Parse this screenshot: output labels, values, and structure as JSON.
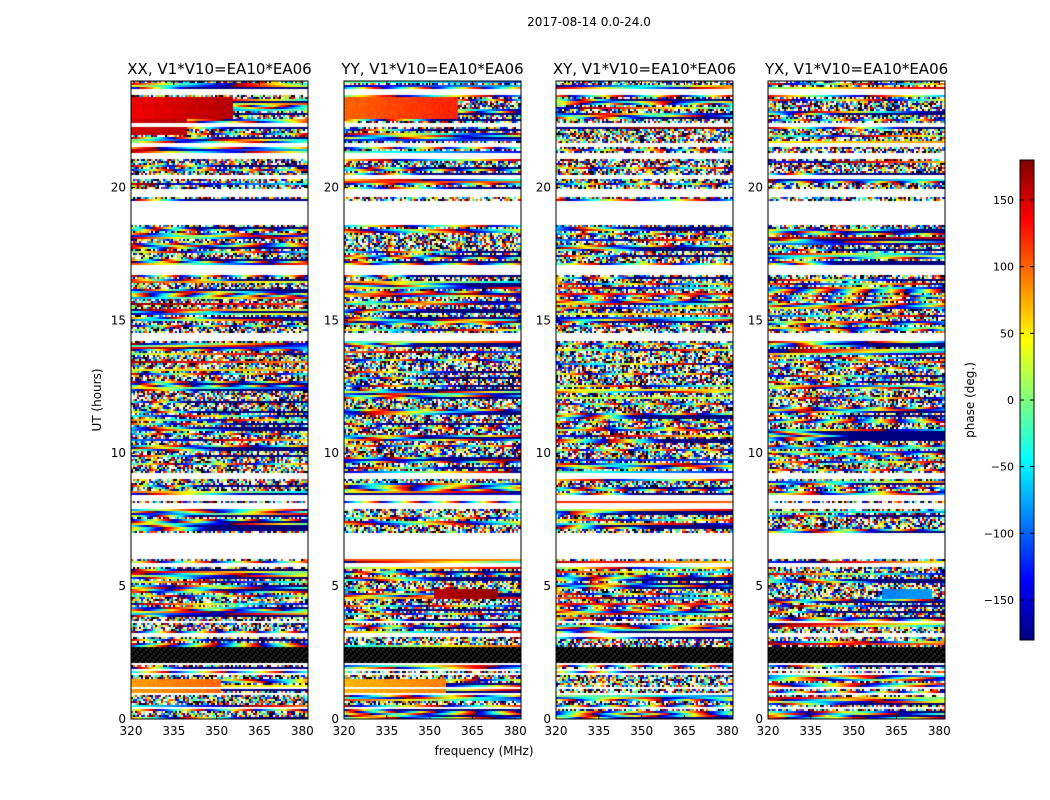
{
  "figure": {
    "suptitle": "2017-08-14 0.0-24.0",
    "ylabel": "UT (hours)",
    "xlabel": "frequency (MHz)"
  },
  "colormap": {
    "name": "jet",
    "stops": [
      "#00007f",
      "#0000ff",
      "#007fff",
      "#00ffff",
      "#7fff7f",
      "#ffff00",
      "#ff7f00",
      "#ff0000",
      "#7f0000"
    ]
  },
  "chart_data": [
    {
      "type": "heatmap",
      "title": "XX, V1*V10=EA10*EA06",
      "xlim": [
        320,
        382
      ],
      "ylim": [
        0,
        24
      ],
      "xticks": [
        320,
        335,
        350,
        365,
        380
      ],
      "yticks": [
        0,
        5,
        10,
        15,
        20
      ],
      "xlabel": "",
      "ylabel": "UT (hours)",
      "value": "phase (deg.)",
      "coherent_bands": [
        {
          "t0": 22.6,
          "t1": 23.4,
          "f0": 320,
          "f1": 356,
          "phase": 140
        },
        {
          "t0": 22.0,
          "t1": 22.6,
          "f0": 320,
          "f1": 340,
          "phase": 150
        },
        {
          "t0": 1.0,
          "t1": 1.5,
          "f0": 320,
          "f1": 352,
          "phase": 80
        }
      ]
    },
    {
      "type": "heatmap",
      "title": "YY, V1*V10=EA10*EA06",
      "xlim": [
        320,
        382
      ],
      "ylim": [
        0,
        24
      ],
      "xticks": [
        320,
        335,
        350,
        365,
        380
      ],
      "yticks": [
        0,
        5,
        10,
        15,
        20
      ],
      "xlabel": "frequency (MHz)",
      "ylabel": "",
      "value": "phase (deg.)",
      "coherent_bands": [
        {
          "t0": 22.6,
          "t1": 23.4,
          "f0": 320,
          "f1": 360,
          "phase": 100
        },
        {
          "t0": 1.0,
          "t1": 1.5,
          "f0": 320,
          "f1": 356,
          "phase": 70
        },
        {
          "t0": 4.5,
          "t1": 4.9,
          "f0": 352,
          "f1": 374,
          "phase": 160
        }
      ]
    },
    {
      "type": "heatmap",
      "title": "XY, V1*V10=EA10*EA06",
      "xlim": [
        320,
        382
      ],
      "ylim": [
        0,
        24
      ],
      "xticks": [
        320,
        335,
        350,
        365,
        380
      ],
      "yticks": [
        0,
        5,
        10,
        15,
        20
      ],
      "xlabel": "",
      "ylabel": "",
      "value": "phase (deg.)",
      "coherent_bands": []
    },
    {
      "type": "heatmap",
      "title": "YX, V1*V10=EA10*EA06",
      "xlim": [
        320,
        382
      ],
      "ylim": [
        0,
        24
      ],
      "xticks": [
        320,
        335,
        350,
        365,
        380
      ],
      "yticks": [
        0,
        5,
        10,
        15,
        20
      ],
      "xlabel": "",
      "ylabel": "",
      "value": "phase (deg.)",
      "coherent_bands": [
        {
          "t0": 4.5,
          "t1": 4.9,
          "f0": 360,
          "f1": 378,
          "phase": -90
        }
      ]
    }
  ],
  "colorbar": {
    "label": "phase (deg.)",
    "vmin": -180,
    "vmax": 180,
    "ticks": [
      -150,
      -100,
      -50,
      0,
      50,
      100,
      150
    ],
    "tick_labels": [
      "−150",
      "−100",
      "−50",
      "0",
      "50",
      "100",
      "150"
    ]
  },
  "missing_time_ranges": [
    [
      23.5,
      23.7
    ],
    [
      22.3,
      22.4
    ],
    [
      21.5,
      21.7
    ],
    [
      21.1,
      21.3
    ],
    [
      20.3,
      20.5
    ],
    [
      19.6,
      19.9
    ],
    [
      18.6,
      19.5
    ],
    [
      16.7,
      17.1
    ],
    [
      14.2,
      14.5
    ],
    [
      9.0,
      9.25
    ],
    [
      8.2,
      8.4
    ],
    [
      7.9,
      8.1
    ],
    [
      6.8,
      7.0
    ],
    [
      6.0,
      6.8
    ],
    [
      5.7,
      5.9
    ],
    [
      3.6,
      3.7
    ],
    [
      3.05,
      3.2
    ],
    [
      2.0,
      2.1
    ],
    [
      1.8,
      1.9
    ],
    [
      1.65,
      1.72
    ],
    [
      1.15,
      1.22
    ],
    [
      0.9,
      1.0
    ],
    [
      0.35,
      0.45
    ]
  ],
  "saturated_time_ranges": [
    [
      2.1,
      2.7
    ]
  ]
}
